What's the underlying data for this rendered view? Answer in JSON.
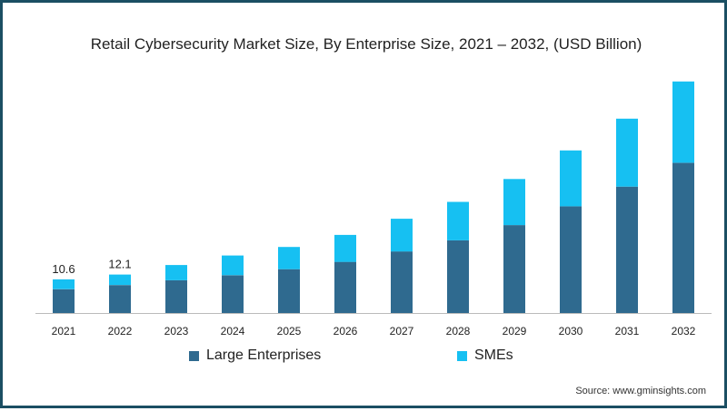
{
  "chart_data": {
    "type": "bar",
    "stacked": true,
    "title": "Retail Cybersecurity Market Size, By Enterprise Size, 2021 – 2032, (USD Billion)",
    "xlabel": "",
    "ylabel": "",
    "categories": [
      "2021",
      "2022",
      "2023",
      "2024",
      "2025",
      "2026",
      "2027",
      "2028",
      "2029",
      "2030",
      "2031",
      "2032"
    ],
    "series": [
      {
        "name": "Large Enterprises",
        "color": "#2f6a8f",
        "values": [
          7.5,
          8.8,
          10.3,
          11.9,
          13.8,
          16.1,
          19.4,
          22.9,
          27.7,
          33.6,
          39.8,
          47.3
        ]
      },
      {
        "name": "SMEs",
        "color": "#16c0f2",
        "values": [
          3.1,
          3.3,
          4.8,
          6.2,
          7.0,
          8.5,
          10.3,
          12.1,
          14.5,
          17.6,
          21.4,
          25.6
        ]
      }
    ],
    "data_labels": [
      {
        "category": "2021",
        "text": "10.6"
      },
      {
        "category": "2022",
        "text": "12.1"
      }
    ],
    "ylim": [
      0,
      74
    ],
    "grid": false,
    "legend_position": "bottom"
  },
  "source": "Source: www.gminsights.com"
}
